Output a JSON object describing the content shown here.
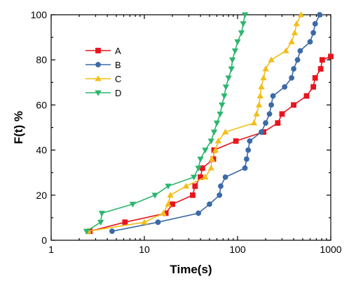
{
  "chart_data": {
    "type": "line",
    "title": "",
    "xlabel": "Time(s)",
    "ylabel": "F(t) %",
    "xscale": "log",
    "xlim": [
      1,
      1000
    ],
    "ylim": [
      0,
      100
    ],
    "xticks": [
      1,
      10,
      100,
      1000
    ],
    "xtick_labels": [
      "1",
      "10",
      "100",
      "1000"
    ],
    "yticks": [
      0,
      20,
      40,
      60,
      80,
      100
    ],
    "ytick_labels": [
      "0",
      "20",
      "40",
      "60",
      "80",
      "100"
    ],
    "grid": false,
    "legend_position": "top-left",
    "series": [
      {
        "name": "A",
        "color": "#e8141d",
        "marker": "square",
        "points": [
          [
            2.6,
            4
          ],
          [
            6.2,
            8
          ],
          [
            17,
            12
          ],
          [
            20,
            16
          ],
          [
            33,
            20
          ],
          [
            35,
            24
          ],
          [
            40,
            28
          ],
          [
            42,
            32
          ],
          [
            55,
            36
          ],
          [
            56,
            40
          ],
          [
            96,
            44
          ],
          [
            190,
            48
          ],
          [
            270,
            52
          ],
          [
            300,
            56
          ],
          [
            400,
            60
          ],
          [
            550,
            64
          ],
          [
            650,
            68
          ],
          [
            680,
            72
          ],
          [
            780,
            76
          ],
          [
            810,
            80
          ],
          [
            1000,
            81.5
          ]
        ]
      },
      {
        "name": "B",
        "color": "#3b6aa6",
        "marker": "circle",
        "points": [
          [
            4.5,
            4
          ],
          [
            14,
            8
          ],
          [
            38,
            12
          ],
          [
            50,
            16
          ],
          [
            64,
            20
          ],
          [
            66,
            24
          ],
          [
            74,
            28
          ],
          [
            120,
            32
          ],
          [
            125,
            36
          ],
          [
            130,
            40
          ],
          [
            135,
            44
          ],
          [
            180,
            48
          ],
          [
            200,
            52
          ],
          [
            220,
            56
          ],
          [
            230,
            60
          ],
          [
            240,
            64
          ],
          [
            320,
            68
          ],
          [
            380,
            72
          ],
          [
            400,
            76
          ],
          [
            440,
            80
          ],
          [
            470,
            84
          ],
          [
            600,
            88
          ],
          [
            650,
            92
          ],
          [
            680,
            96
          ],
          [
            760,
            100
          ]
        ]
      },
      {
        "name": "C",
        "color": "#f2be19",
        "marker": "triangle-up",
        "points": [
          [
            2.5,
            4
          ],
          [
            10,
            8
          ],
          [
            16,
            12
          ],
          [
            18,
            16
          ],
          [
            19,
            20
          ],
          [
            28,
            24
          ],
          [
            45,
            28
          ],
          [
            52,
            32
          ],
          [
            53,
            36
          ],
          [
            58,
            40
          ],
          [
            62,
            44
          ],
          [
            74,
            48
          ],
          [
            150,
            52
          ],
          [
            160,
            56
          ],
          [
            170,
            60
          ],
          [
            175,
            64
          ],
          [
            180,
            68
          ],
          [
            190,
            72
          ],
          [
            200,
            76
          ],
          [
            230,
            80
          ],
          [
            330,
            84
          ],
          [
            380,
            88
          ],
          [
            410,
            92
          ],
          [
            430,
            96
          ],
          [
            480,
            100
          ]
        ]
      },
      {
        "name": "D",
        "color": "#2cb56e",
        "marker": "triangle-down",
        "points": [
          [
            2.4,
            4
          ],
          [
            3.4,
            8
          ],
          [
            3.5,
            12
          ],
          [
            7.5,
            16
          ],
          [
            13,
            20
          ],
          [
            18,
            24
          ],
          [
            34,
            28
          ],
          [
            38,
            32
          ],
          [
            40,
            36
          ],
          [
            45,
            40
          ],
          [
            52,
            44
          ],
          [
            56,
            48
          ],
          [
            60,
            52
          ],
          [
            65,
            56
          ],
          [
            68,
            60
          ],
          [
            72,
            64
          ],
          [
            75,
            68
          ],
          [
            80,
            72
          ],
          [
            86,
            76
          ],
          [
            88,
            80
          ],
          [
            94,
            84
          ],
          [
            100,
            88
          ],
          [
            110,
            92
          ],
          [
            115,
            96
          ],
          [
            120,
            100
          ]
        ]
      }
    ]
  }
}
